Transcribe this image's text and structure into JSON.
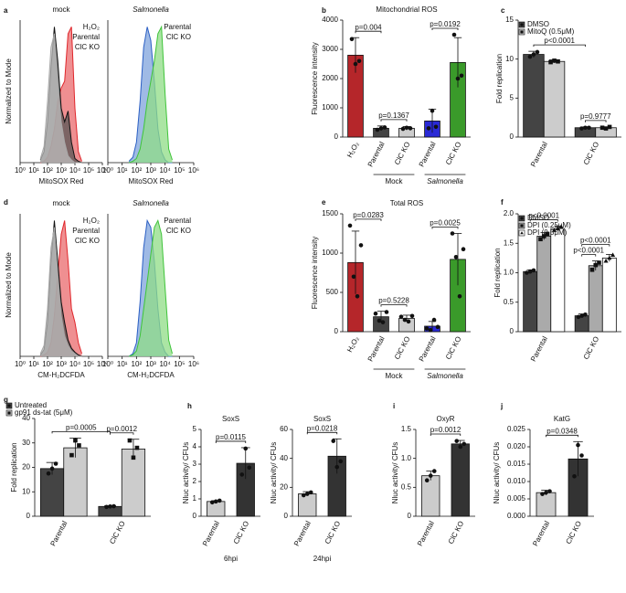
{
  "chart_data": [
    {
      "type": "area",
      "panel": "a",
      "title": "mock",
      "ylabel": "Normalized to Mode",
      "xlabel": "MitoSOX Red",
      "xscale": "log",
      "xlim": [
        1,
        1000000
      ],
      "xticks": [
        {
          "value": 1,
          "label": "10⁰"
        },
        {
          "value": 10,
          "label": "10¹"
        },
        {
          "value": 100,
          "label": "10²"
        },
        {
          "value": 1000,
          "label": "10³"
        },
        {
          "value": 10000,
          "label": "10⁴"
        },
        {
          "value": 100000,
          "label": "10⁵"
        },
        {
          "value": 1000000,
          "label": "10⁶"
        }
      ],
      "ylim": [
        0,
        105
      ],
      "x": [
        30,
        56,
        100,
        178,
        316,
        562,
        1000,
        1778,
        3162,
        5623,
        10000,
        17783,
        31623
      ],
      "series": [
        {
          "name": "H₂O₂",
          "color": "#e0262b",
          "fill": "#ea6a6c",
          "values": [
            0,
            1,
            4,
            12,
            25,
            45,
            55,
            60,
            95,
            100,
            40,
            8,
            1
          ]
        },
        {
          "name": "Parental",
          "color": "#111111",
          "fill": "#555555",
          "values": [
            2,
            8,
            30,
            70,
            100,
            75,
            40,
            30,
            38,
            15,
            3,
            1,
            0
          ]
        },
        {
          "name": "ClC KO",
          "color": "#a8a8a8",
          "fill": "#bdbdbd",
          "values": [
            3,
            12,
            45,
            85,
            95,
            60,
            30,
            15,
            5,
            2,
            0,
            0,
            0
          ]
        }
      ]
    },
    {
      "type": "area",
      "title": "Salmonella",
      "title_style": "italic",
      "xlabel": "MitoSOX Red",
      "xscale": "log",
      "xlim": [
        1,
        1000000
      ],
      "xticks": [
        {
          "value": 1,
          "label": "10⁰"
        },
        {
          "value": 10,
          "label": "10¹"
        },
        {
          "value": 100,
          "label": "10²"
        },
        {
          "value": 1000,
          "label": "10³"
        },
        {
          "value": 10000,
          "label": "10⁴"
        },
        {
          "value": 100000,
          "label": "10⁵"
        },
        {
          "value": 1000000,
          "label": "10⁶"
        }
      ],
      "ylim": [
        0,
        105
      ],
      "x": [
        30,
        56,
        100,
        178,
        316,
        562,
        1000,
        1778,
        3162,
        5623,
        10000,
        17783,
        31623
      ],
      "series": [
        {
          "name": "Parental",
          "color": "#2b5fc4",
          "fill": "#7fa3dc",
          "values": [
            1,
            4,
            15,
            45,
            85,
            100,
            90,
            60,
            25,
            8,
            2,
            0,
            0
          ]
        },
        {
          "name": "ClC KO",
          "color": "#3fc43a",
          "fill": "#8fdc86",
          "values": [
            0,
            1,
            3,
            10,
            25,
            45,
            60,
            75,
            95,
            100,
            50,
            10,
            2
          ]
        }
      ]
    },
    {
      "type": "bar",
      "panel": "b",
      "title": "Mitochondrial ROS",
      "ylabel": "Fluorescence intensity",
      "ylim": [
        0,
        4000
      ],
      "yticks": [
        0,
        1000,
        2000,
        3000,
        4000
      ],
      "categories": [
        "H₂O₂",
        "Parental",
        "ClC KO",
        "Parental",
        "ClC KO"
      ],
      "colors": [
        "#b5262a",
        "#444444",
        "#cccccc",
        "#2a2ad6",
        "#3a9a2a"
      ],
      "values": [
        2800,
        300,
        300,
        550,
        2550
      ],
      "errors": [
        600,
        80,
        60,
        400,
        850
      ],
      "points": [
        [
          3350,
          2500,
          2600
        ],
        [
          250,
          300,
          330
        ],
        [
          280,
          320,
          300
        ],
        [
          300,
          900,
          350
        ],
        [
          3500,
          2000,
          2100
        ]
      ],
      "groups": [
        {
          "label": "Mock",
          "span": [
            1,
            2
          ]
        },
        {
          "label": "Salmonella",
          "span": [
            3,
            4
          ],
          "style": "italic"
        }
      ],
      "annotations": [
        {
          "text": "p=0.004",
          "between": [
            0,
            1
          ]
        },
        {
          "text": "p=0.1367",
          "between": [
            1,
            2
          ]
        },
        {
          "text": "p=0.0192",
          "between": [
            3,
            4
          ]
        }
      ]
    },
    {
      "type": "bar",
      "panel": "c",
      "ylabel": "Fold replication",
      "ylim": [
        0,
        15
      ],
      "yticks": [
        0,
        5,
        10,
        15
      ],
      "categories": [
        "Parental",
        "ClC KO"
      ],
      "series": [
        {
          "name": "DMSO",
          "color": "#444444",
          "marker": "circle",
          "values": [
            10.6,
            1.2
          ],
          "errors": [
            0.4,
            0.1
          ],
          "points": [
            [
              10.3,
              10.6,
              10.9
            ],
            [
              1.1,
              1.2,
              1.2
            ]
          ]
        },
        {
          "name": "MitoQ (0.5μM)",
          "color": "#cccccc",
          "marker": "square",
          "values": [
            9.7,
            1.2
          ],
          "errors": [
            0.2,
            0.1
          ],
          "points": [
            [
              9.6,
              9.8,
              9.7
            ],
            [
              1.2,
              1.1,
              1.3
            ]
          ]
        }
      ],
      "annotations": [
        {
          "text": "p<0.0001",
          "between": [
            0,
            2
          ]
        },
        {
          "text": "p=0.9777",
          "between": [
            2,
            3
          ]
        }
      ]
    },
    {
      "type": "area",
      "panel": "d",
      "title": "mock",
      "ylabel": "Normalized to Mode",
      "xlabel": "CM-H₂DCFDA",
      "xscale": "log",
      "xlim": [
        1,
        1000000
      ],
      "xticks": [
        {
          "value": 1,
          "label": "10⁰"
        },
        {
          "value": 10,
          "label": "10¹"
        },
        {
          "value": 100,
          "label": "10²"
        },
        {
          "value": 1000,
          "label": "10³"
        },
        {
          "value": 10000,
          "label": "10⁴"
        },
        {
          "value": 100000,
          "label": "10⁵"
        },
        {
          "value": 1000000,
          "label": "10⁶"
        }
      ],
      "ylim": [
        0,
        105
      ],
      "x": [
        30,
        56,
        100,
        178,
        316,
        562,
        1000,
        1778,
        3162,
        5623,
        10000,
        17783,
        31623
      ],
      "series": [
        {
          "name": "H₂O₂",
          "color": "#e0262b",
          "fill": "#ea6a6c",
          "values": [
            0,
            1,
            3,
            10,
            30,
            60,
            90,
            100,
            70,
            35,
            25,
            10,
            2
          ]
        },
        {
          "name": "Parental",
          "color": "#111111",
          "fill": "#555555",
          "values": [
            1,
            5,
            25,
            70,
            100,
            70,
            40,
            25,
            12,
            6,
            3,
            1,
            0
          ]
        },
        {
          "name": "ClC KO",
          "color": "#a8a8a8",
          "fill": "#bdbdbd",
          "values": [
            2,
            8,
            35,
            80,
            95,
            60,
            30,
            15,
            8,
            4,
            2,
            0,
            0
          ]
        }
      ]
    },
    {
      "type": "area",
      "title": "Salmonella",
      "title_style": "italic",
      "xlabel": "CM-H₂DCFDA",
      "xscale": "log",
      "xlim": [
        1,
        1000000
      ],
      "xticks": [
        {
          "value": 1,
          "label": "10⁰"
        },
        {
          "value": 10,
          "label": "10¹"
        },
        {
          "value": 100,
          "label": "10²"
        },
        {
          "value": 1000,
          "label": "10³"
        },
        {
          "value": 10000,
          "label": "10⁴"
        },
        {
          "value": 100000,
          "label": "10⁵"
        },
        {
          "value": 1000000,
          "label": "10⁶"
        }
      ],
      "ylim": [
        0,
        105
      ],
      "x": [
        30,
        56,
        100,
        178,
        316,
        562,
        1000,
        1778,
        3162,
        5623,
        10000,
        17783,
        31623
      ],
      "series": [
        {
          "name": "Parental",
          "color": "#2b5fc4",
          "fill": "#7fa3dc",
          "values": [
            0,
            2,
            10,
            40,
            80,
            100,
            95,
            70,
            35,
            10,
            3,
            0,
            0
          ]
        },
        {
          "name": "ClC KO",
          "color": "#3fc43a",
          "fill": "#8fdc86",
          "values": [
            0,
            1,
            4,
            15,
            35,
            55,
            75,
            95,
            100,
            90,
            50,
            12,
            2
          ]
        }
      ]
    },
    {
      "type": "bar",
      "panel": "e",
      "title": "Total ROS",
      "ylabel": "Fluorescence intensity",
      "ylim": [
        0,
        1500
      ],
      "yticks": [
        0,
        500,
        1000,
        1500
      ],
      "categories": [
        "H₂O₂",
        "Parental",
        "ClC KO",
        "Parental",
        "ClC KO"
      ],
      "colors": [
        "#b5262a",
        "#444444",
        "#cccccc",
        "#2a2ad6",
        "#3a9a2a"
      ],
      "values": [
        880,
        190,
        170,
        70,
        920
      ],
      "errors": [
        400,
        70,
        40,
        60,
        330
      ],
      "points": [
        [
          1350,
          700,
          450,
          1100
        ],
        [
          230,
          140,
          120,
          250
        ],
        [
          190,
          150,
          130,
          200
        ],
        [
          40,
          20,
          150,
          60
        ],
        [
          1250,
          950,
          450,
          1050
        ]
      ],
      "groups": [
        {
          "label": "Mock",
          "span": [
            1,
            2
          ]
        },
        {
          "label": "Salmonella",
          "span": [
            3,
            4
          ],
          "style": "italic"
        }
      ],
      "annotations": [
        {
          "text": "p=0.0283",
          "between": [
            0,
            1
          ]
        },
        {
          "text": "p=0.5228",
          "between": [
            1,
            2
          ]
        },
        {
          "text": "p=0.0025",
          "between": [
            3,
            4
          ]
        }
      ]
    },
    {
      "type": "bar",
      "panel": "f",
      "ylabel": "Fold replication",
      "ylim": [
        0,
        2
      ],
      "yticks": [
        0,
        0.5,
        {
          "value": 1,
          "label": "1.0"
        },
        1.5,
        {
          "value": 2,
          "label": "2.0"
        }
      ],
      "categories": [
        "Parental",
        "ClC KO"
      ],
      "series": [
        {
          "name": "DMSO",
          "color": "#444444",
          "marker": "circle",
          "values": [
            1.02,
            0.27
          ],
          "errors": [
            0.03,
            0.03
          ],
          "points": [
            [
              1.0,
              1.02,
              1.04
            ],
            [
              0.25,
              0.27,
              0.29
            ]
          ]
        },
        {
          "name": "DPI (0.25μM)",
          "color": "#aaaaaa",
          "marker": "square",
          "values": [
            1.62,
            1.12
          ],
          "errors": [
            0.06,
            0.08
          ],
          "points": [
            [
              1.57,
              1.62,
              1.66
            ],
            [
              1.05,
              1.13,
              1.17
            ]
          ]
        },
        {
          "name": "DPI (0.5μM)",
          "color": "#ffffff",
          "marker": "triangle",
          "values": [
            1.75,
            1.25
          ],
          "errors": [
            0.04,
            0.06
          ],
          "points": [
            [
              1.72,
              1.75,
              1.78
            ],
            [
              1.2,
              1.25,
              1.3
            ]
          ]
        }
      ],
      "annotations": [
        {
          "text": "p<0.0001",
          "between": [
            3,
            4
          ]
        },
        {
          "text": "p<0.0001",
          "between": [
            0,
            2
          ]
        },
        {
          "text": "p<0.0001",
          "between": [
            3,
            5
          ]
        }
      ]
    },
    {
      "type": "bar",
      "panel": "g",
      "ylabel": "Fold replication",
      "ylim": [
        0,
        40
      ],
      "yticks": [
        0,
        10,
        20,
        30,
        40
      ],
      "categories": [
        "Parental",
        "ClC KO"
      ],
      "series": [
        {
          "name": "Untreated",
          "color": "#444444",
          "marker": "circle",
          "values": [
            19.5,
            4
          ],
          "errors": [
            2.5,
            0.3
          ],
          "points": [
            [
              17.5,
              19.5,
              21.5
            ],
            [
              3.8,
              4.0,
              4.1
            ]
          ]
        },
        {
          "name": "gp91 ds-tat (5μM)",
          "color": "#cccccc",
          "marker": "square",
          "values": [
            28,
            27.5
          ],
          "errors": [
            4,
            4
          ],
          "points": [
            [
              25,
              31,
              29
            ],
            [
              31,
              24,
              28
            ]
          ]
        }
      ],
      "annotations": [
        {
          "text": "p=0.0005",
          "between": [
            0,
            2
          ]
        },
        {
          "text": "p=0.0012",
          "between": [
            2,
            3
          ]
        }
      ]
    },
    {
      "type": "bar",
      "panel": "h",
      "title": "SoxS",
      "ylabel": "Nluc activity/ CFUs",
      "xlabel": "6hpi",
      "ylim": [
        0,
        5
      ],
      "yticks": [
        0,
        1,
        2,
        3,
        4,
        5
      ],
      "categories": [
        "Parental",
        "ClC KO"
      ],
      "colors": [
        "#cccccc",
        "#333333"
      ],
      "values": [
        0.85,
        3.05
      ],
      "errors": [
        0.05,
        0.9
      ],
      "points": [
        [
          0.8,
          0.85,
          0.9
        ],
        [
          2.4,
          3.9,
          2.8
        ]
      ],
      "annotations": [
        {
          "text": "p=0.0115",
          "between": [
            0,
            1
          ]
        }
      ]
    },
    {
      "type": "bar",
      "title": "SoxS",
      "ylabel": "Nluc activity/ CFUs",
      "xlabel": "24hpi",
      "ylim": [
        0,
        60
      ],
      "yticks": [
        0,
        20,
        40,
        60
      ],
      "categories": [
        "Parental",
        "ClC KO"
      ],
      "colors": [
        "#cccccc",
        "#333333"
      ],
      "values": [
        15.5,
        41.5
      ],
      "errors": [
        1.5,
        12
      ],
      "points": [
        [
          14.5,
          15.5,
          16.5
        ],
        [
          52,
          34,
          38
        ]
      ],
      "annotations": [
        {
          "text": "p=0.0218",
          "between": [
            0,
            1
          ]
        }
      ]
    },
    {
      "type": "bar",
      "panel": "i",
      "title": "OxyR",
      "ylabel": "Nluc activity/ CFUs",
      "ylim": [
        0,
        1.5
      ],
      "yticks": [
        0,
        0.5,
        {
          "value": 1,
          "label": "1.0"
        },
        1.5
      ],
      "categories": [
        "Parental",
        "ClC KO"
      ],
      "colors": [
        "#cccccc",
        "#333333"
      ],
      "values": [
        0.7,
        1.25
      ],
      "errors": [
        0.08,
        0.06
      ],
      "points": [
        [
          0.62,
          0.7,
          0.78
        ],
        [
          1.3,
          1.2,
          1.25
        ]
      ],
      "annotations": [
        {
          "text": "p=0.0012",
          "between": [
            0,
            1
          ]
        }
      ]
    },
    {
      "type": "bar",
      "panel": "j",
      "title": "KatG",
      "ylabel": "Nluc activity/ CFUs",
      "ylim": [
        0,
        0.025
      ],
      "yticks": [
        {
          "value": 0,
          "label": "0.000"
        },
        {
          "value": 0.005,
          "label": "0.005"
        },
        {
          "value": 0.01,
          "label": "0.010"
        },
        {
          "value": 0.015,
          "label": "0.015"
        },
        {
          "value": 0.02,
          "label": "0.020"
        },
        {
          "value": 0.025,
          "label": "0.025"
        }
      ],
      "categories": [
        "Parental",
        "ClC KO"
      ],
      "colors": [
        "#cccccc",
        "#333333"
      ],
      "values": [
        0.0068,
        0.0165
      ],
      "errors": [
        0.0007,
        0.005
      ],
      "points": [
        [
          0.0064,
          0.0068,
          0.0072
        ],
        [
          0.0115,
          0.0205,
          0.0175
        ]
      ],
      "annotations": [
        {
          "text": "p=0.0348",
          "between": [
            0,
            1
          ]
        }
      ]
    }
  ]
}
